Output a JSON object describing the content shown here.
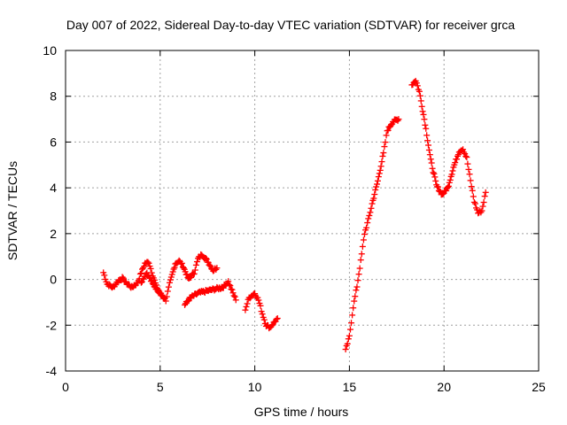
{
  "chart_data": {
    "type": "scatter",
    "title": "Day 007 of 2022, Sidereal Day-to-day VTEC variation (SDTVAR) for receiver grca",
    "xlabel": "GPS time / hours",
    "ylabel": "SDTVAR / TECUs",
    "xlim": [
      0,
      25
    ],
    "ylim": [
      -4,
      10
    ],
    "xticks": [
      "0",
      "5",
      "10",
      "15",
      "20",
      "25"
    ],
    "yticks": [
      "-4",
      "-2",
      "0",
      "2",
      "4",
      "6",
      "8",
      "10"
    ],
    "grid": true,
    "marker": "plus",
    "color": "#ff0000",
    "segments": [
      [
        [
          2.0,
          0.3
        ],
        [
          2.2,
          -0.2
        ],
        [
          2.5,
          -0.35
        ],
        [
          2.8,
          -0.05
        ],
        [
          3.0,
          0.05
        ],
        [
          3.2,
          -0.15
        ],
        [
          3.5,
          -0.35
        ],
        [
          3.8,
          -0.15
        ],
        [
          4.0,
          0.3
        ],
        [
          4.2,
          0.7
        ],
        [
          4.4,
          0.75
        ],
        [
          4.6,
          0.2
        ],
        [
          4.8,
          -0.3
        ],
        [
          5.0,
          -0.6
        ],
        [
          5.3,
          -0.9
        ],
        [
          5.5,
          -0.2
        ],
        [
          5.8,
          0.7
        ],
        [
          6.0,
          0.8
        ],
        [
          6.2,
          0.6
        ],
        [
          6.5,
          0.0
        ],
        [
          6.8,
          0.3
        ],
        [
          7.0,
          0.9
        ],
        [
          7.2,
          1.1
        ],
        [
          7.5,
          0.8
        ],
        [
          7.8,
          0.4
        ],
        [
          8.0,
          0.5
        ]
      ],
      [
        [
          4.0,
          -0.1
        ],
        [
          4.3,
          0.3
        ],
        [
          4.6,
          -0.2
        ],
        [
          5.0,
          -0.6
        ],
        [
          5.2,
          -0.8
        ]
      ],
      [
        [
          6.3,
          -1.1
        ],
        [
          6.6,
          -0.8
        ],
        [
          7.0,
          -0.6
        ],
        [
          7.5,
          -0.5
        ],
        [
          8.0,
          -0.4
        ],
        [
          8.3,
          -0.35
        ],
        [
          8.6,
          -0.1
        ],
        [
          8.8,
          -0.5
        ],
        [
          9.0,
          -0.9
        ]
      ],
      [
        [
          9.5,
          -1.3
        ],
        [
          9.7,
          -0.8
        ],
        [
          10.0,
          -0.6
        ],
        [
          10.2,
          -0.9
        ],
        [
          10.4,
          -1.5
        ],
        [
          10.6,
          -2.0
        ],
        [
          10.8,
          -2.1
        ],
        [
          11.0,
          -1.9
        ],
        [
          11.2,
          -1.7
        ]
      ],
      [
        [
          14.8,
          -3.1
        ],
        [
          15.0,
          -2.5
        ],
        [
          15.2,
          -1.2
        ],
        [
          15.4,
          -0.3
        ],
        [
          15.6,
          0.8
        ],
        [
          15.8,
          2.0
        ],
        [
          16.0,
          2.6
        ],
        [
          16.2,
          3.3
        ],
        [
          16.5,
          4.3
        ],
        [
          16.8,
          5.5
        ],
        [
          17.0,
          6.5
        ],
        [
          17.3,
          6.9
        ],
        [
          17.6,
          7.0
        ]
      ],
      [
        [
          18.3,
          8.5
        ],
        [
          18.5,
          8.7
        ],
        [
          18.7,
          8.2
        ],
        [
          19.0,
          6.8
        ],
        [
          19.3,
          5.2
        ],
        [
          19.6,
          4.1
        ],
        [
          19.9,
          3.7
        ],
        [
          20.2,
          4.0
        ],
        [
          20.5,
          4.9
        ],
        [
          20.8,
          5.6
        ],
        [
          21.0,
          5.7
        ],
        [
          21.2,
          5.3
        ],
        [
          21.4,
          4.3
        ],
        [
          21.6,
          3.4
        ],
        [
          21.8,
          2.9
        ],
        [
          22.0,
          3.0
        ],
        [
          22.2,
          3.8
        ]
      ]
    ]
  }
}
